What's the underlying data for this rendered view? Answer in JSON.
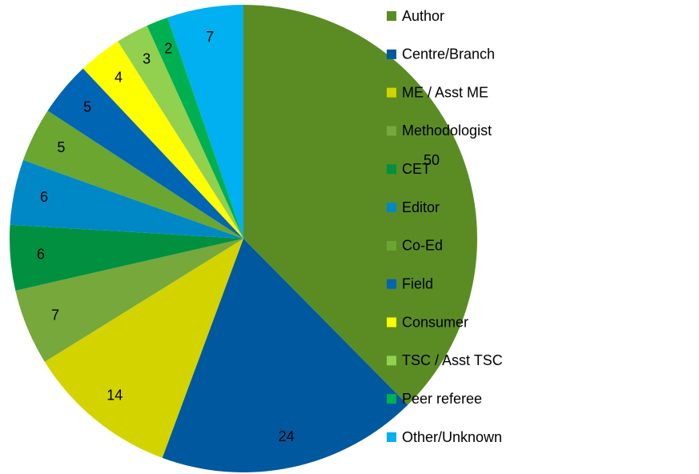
{
  "chart_data": {
    "type": "pie",
    "categories": [
      "Author",
      "Centre/Branch",
      "ME / Asst ME",
      "Methodologist",
      "CET",
      "Editor",
      "Co-Ed",
      "Field",
      "Consumer",
      "TSC / Asst TSC",
      "Peer referee",
      "Other/Unknown"
    ],
    "values": [
      50,
      24,
      14,
      7,
      6,
      6,
      5,
      5,
      4,
      3,
      2,
      7
    ],
    "colors": [
      "#5b8c24",
      "#00589f",
      "#d3d300",
      "#76a83c",
      "#009040",
      "#0088c6",
      "#6aa630",
      "#0065b3",
      "#ffff00",
      "#92d050",
      "#00b050",
      "#00b0f0"
    ],
    "legend": "right"
  }
}
